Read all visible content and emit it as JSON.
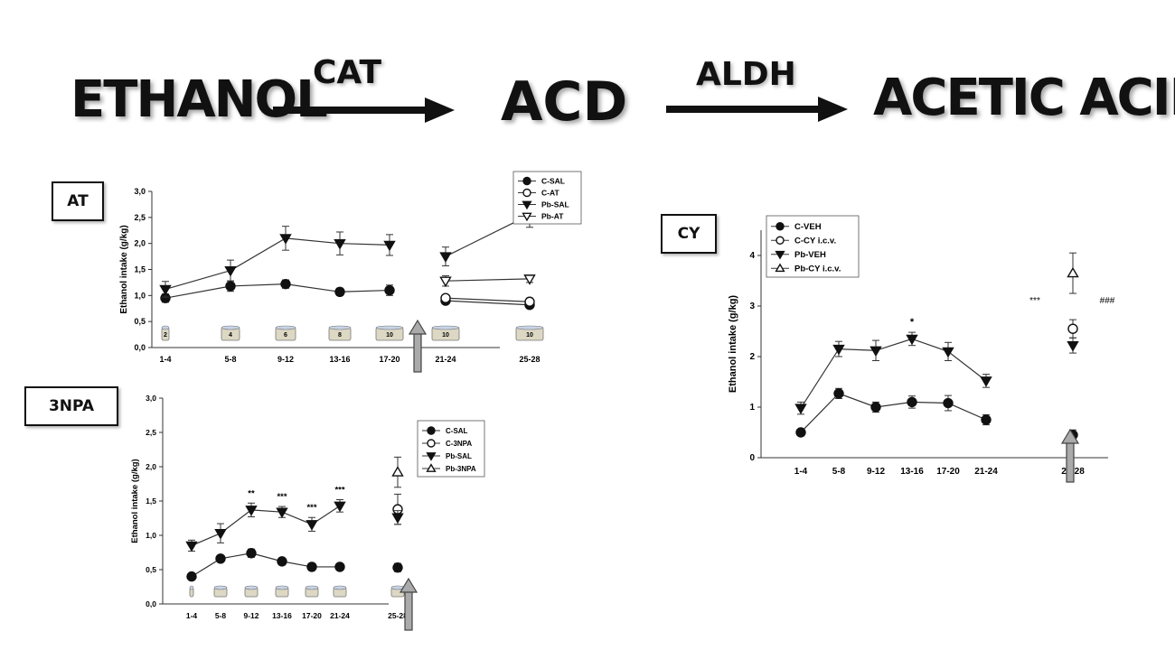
{
  "flow": {
    "substrate": "ETHANOL",
    "enzyme1": "CAT",
    "intermediate": "ACD",
    "enzyme2": "ALDH",
    "product": "ACETIC ACID"
  },
  "panel_labels": {
    "at": "AT",
    "npa": "3NPA",
    "cy": "CY"
  },
  "chart_data": [
    {
      "id": "at",
      "type": "line",
      "ylabel": "Ethanol intake (g/kg)",
      "ylim": [
        0,
        3.0
      ],
      "yticks": [
        "0,0",
        "0,5",
        "1,0",
        "1,5",
        "2,0",
        "2,5",
        "3,0"
      ],
      "categories": [
        "1-4",
        "5-8",
        "9-12",
        "13-16",
        "17-20",
        "21-24",
        "25-28"
      ],
      "legend": [
        "C-SAL",
        "C-AT",
        "Pb-SAL",
        "Pb-AT"
      ],
      "series": [
        {
          "name": "C-SAL",
          "marker": "circle-filled",
          "x": [
            0,
            1,
            2,
            3,
            4,
            5,
            6
          ],
          "y": [
            0.95,
            1.18,
            1.22,
            1.07,
            1.1,
            0.9,
            0.82
          ],
          "err": [
            0.08,
            0.1,
            0.08,
            0.07,
            0.1,
            0.05,
            0.05
          ],
          "breakAfter": 4
        },
        {
          "name": "C-AT",
          "marker": "circle-open",
          "x": [
            5,
            6
          ],
          "y": [
            0.95,
            0.88
          ],
          "err": [
            0.06,
            0.07
          ]
        },
        {
          "name": "Pb-SAL",
          "marker": "tri-down-filled",
          "x": [
            0,
            1,
            2,
            3,
            4,
            5,
            6
          ],
          "y": [
            1.12,
            1.48,
            2.1,
            2.0,
            1.97,
            1.75,
            2.55
          ],
          "err": [
            0.15,
            0.2,
            0.23,
            0.22,
            0.2,
            0.18,
            0.24
          ],
          "breakAfter": 4
        },
        {
          "name": "Pb-AT",
          "marker": "tri-down-open",
          "x": [
            5,
            6
          ],
          "y": [
            1.28,
            1.32
          ],
          "err": [
            0.1,
            0.07
          ]
        }
      ],
      "bottle_labels": [
        "2",
        "4",
        "6",
        "8",
        "10",
        "10",
        "10"
      ],
      "annotations": [],
      "arrow_between": [
        4,
        5
      ]
    },
    {
      "id": "npa",
      "type": "line",
      "ylabel": "Ethanol intake (g/kg)",
      "ylim": [
        0,
        3.0
      ],
      "yticks": [
        "0,0",
        "0,5",
        "1,0",
        "1,5",
        "2,0",
        "2,5",
        "3,0"
      ],
      "categories": [
        "1-4",
        "5-8",
        "9-12",
        "13-16",
        "17-20",
        "21-24",
        "25-28"
      ],
      "legend": [
        "C-SAL",
        "C-3NPA",
        "Pb-SAL",
        "Pb-3NPA"
      ],
      "series": [
        {
          "name": "C-SAL",
          "marker": "circle-filled",
          "x": [
            0,
            1,
            2,
            3,
            4,
            5,
            6
          ],
          "y": [
            0.4,
            0.66,
            0.74,
            0.62,
            0.54,
            0.54,
            0.53
          ],
          "err": [
            0.04,
            0.05,
            0.06,
            0.05,
            0.05,
            0.04,
            0.06
          ],
          "breakAfter": 5
        },
        {
          "name": "C-3NPA",
          "marker": "circle-open",
          "x": [
            6
          ],
          "y": [
            1.38
          ],
          "err": [
            0.22
          ]
        },
        {
          "name": "Pb-SAL",
          "marker": "tri-down-filled",
          "x": [
            0,
            1,
            2,
            3,
            4,
            5,
            6
          ],
          "y": [
            0.85,
            1.03,
            1.37,
            1.34,
            1.16,
            1.43,
            1.26
          ],
          "err": [
            0.08,
            0.14,
            0.1,
            0.08,
            0.1,
            0.09,
            0.1
          ],
          "breakAfter": 5
        },
        {
          "name": "Pb-3NPA",
          "marker": "tri-up-open",
          "x": [
            6
          ],
          "y": [
            1.92
          ],
          "err": [
            0.22
          ]
        }
      ],
      "bottle_labels": [
        "",
        "",
        "",
        "",
        "",
        "",
        ""
      ],
      "annotations": [
        {
          "x": 2,
          "text": "**"
        },
        {
          "x": 3,
          "text": "***"
        },
        {
          "x": 4,
          "text": "***"
        },
        {
          "x": 5,
          "text": "***"
        }
      ],
      "arrow_between": [
        5,
        6
      ]
    },
    {
      "id": "cy",
      "type": "line",
      "ylabel": "Ethanol intake (g/kg)",
      "ylim": [
        0,
        4.5
      ],
      "yticks": [
        "0",
        "1",
        "2",
        "3",
        "4"
      ],
      "categories": [
        "1-4",
        "5-8",
        "9-12",
        "13-16",
        "17-20",
        "21-24",
        "25-28"
      ],
      "legend": [
        "C-VEH",
        "C-CY i.c.v.",
        "Pb-VEH",
        "Pb-CY i.c.v."
      ],
      "series": [
        {
          "name": "C-VEH",
          "marker": "circle-filled",
          "x": [
            0,
            1,
            2,
            3,
            4,
            5,
            6
          ],
          "y": [
            0.5,
            1.27,
            1.0,
            1.1,
            1.08,
            0.75,
            0.45
          ],
          "err": [
            0.06,
            0.1,
            0.1,
            0.12,
            0.15,
            0.1,
            0.1
          ],
          "breakAfter": 5
        },
        {
          "name": "C-CY i.c.v.",
          "marker": "circle-open",
          "x": [
            6
          ],
          "y": [
            2.55
          ],
          "err": [
            0.18
          ]
        },
        {
          "name": "Pb-VEH",
          "marker": "tri-down-filled",
          "x": [
            0,
            1,
            2,
            3,
            4,
            5,
            6
          ],
          "y": [
            0.98,
            2.15,
            2.12,
            2.35,
            2.1,
            1.52,
            2.22
          ],
          "err": [
            0.12,
            0.15,
            0.2,
            0.13,
            0.18,
            0.13,
            0.15
          ],
          "breakAfter": 5
        },
        {
          "name": "Pb-CY i.c.v.",
          "marker": "tri-up-open",
          "x": [
            6
          ],
          "y": [
            3.65
          ],
          "err": [
            0.4
          ]
        }
      ],
      "bottle_labels": [],
      "annotations": [
        {
          "x": 3,
          "text": "*"
        }
      ],
      "side_annotations": [
        "***",
        "###"
      ],
      "arrow_between": [
        5,
        6
      ]
    }
  ]
}
